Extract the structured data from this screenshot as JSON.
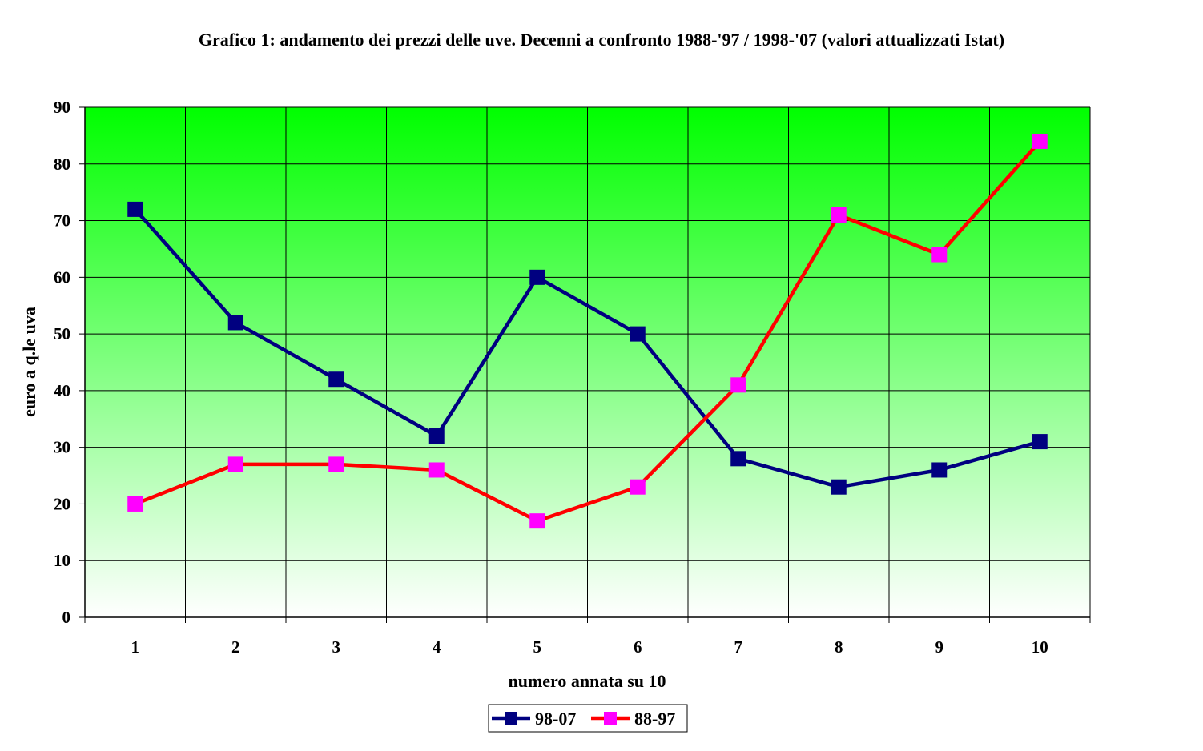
{
  "chart_data": {
    "type": "line",
    "title": "Grafico 1: andamento dei prezzi delle uve. Decenni a confronto 1988-'97 / 1998-'07 (valori attualizzati Istat)",
    "xlabel": "numero annata su 10",
    "ylabel": "euro a q.le uva",
    "categories": [
      "1",
      "2",
      "3",
      "4",
      "5",
      "6",
      "7",
      "8",
      "9",
      "10"
    ],
    "ylim": [
      0,
      90
    ],
    "yticks": [
      0,
      10,
      20,
      30,
      40,
      50,
      60,
      70,
      80,
      90
    ],
    "grid": true,
    "legend_position": "bottom",
    "series": [
      {
        "name": "98-07",
        "color": "#000080",
        "marker_color": "#000080",
        "values": [
          72,
          52,
          42,
          32,
          60,
          50,
          28,
          23,
          26,
          31
        ]
      },
      {
        "name": "88-97",
        "color": "#ff0000",
        "marker_color": "#ff00ff",
        "values": [
          20,
          27,
          27,
          26,
          17,
          23,
          41,
          71,
          64,
          84
        ]
      }
    ],
    "background_gradient": [
      "#00ff00",
      "#ffffff"
    ]
  }
}
